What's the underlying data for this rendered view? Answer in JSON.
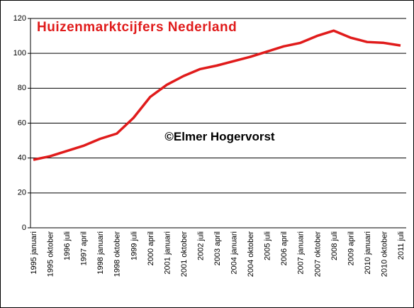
{
  "chart_data": {
    "type": "line",
    "title": "Huizenmarktcijfers Nederland",
    "annotation": "©Elmer Hogervorst",
    "categories": [
      "1995 januari",
      "1995 oktober",
      "1996 juli",
      "1997 april",
      "1998 januari",
      "1998 oktober",
      "1999 juli",
      "2000 april",
      "2001 januari",
      "2001 oktober",
      "2002 juli",
      "2003 april",
      "2004 januari",
      "2004 oktober",
      "2005 juli",
      "2006 april",
      "2007 januari",
      "2007 oktober",
      "2008 juli",
      "2009 april",
      "2010 januari",
      "2010 oktober",
      "2011 juli"
    ],
    "values": [
      39,
      41,
      44,
      47,
      51,
      54,
      63,
      75,
      82,
      87,
      91,
      93,
      95.5,
      98,
      101,
      104,
      106,
      110,
      113,
      109,
      106.5,
      106,
      104.5
    ],
    "color": "#e01b1b",
    "ylim": [
      0,
      120
    ],
    "yticks": [
      0,
      20,
      40,
      60,
      80,
      100,
      120
    ],
    "grid": true
  }
}
